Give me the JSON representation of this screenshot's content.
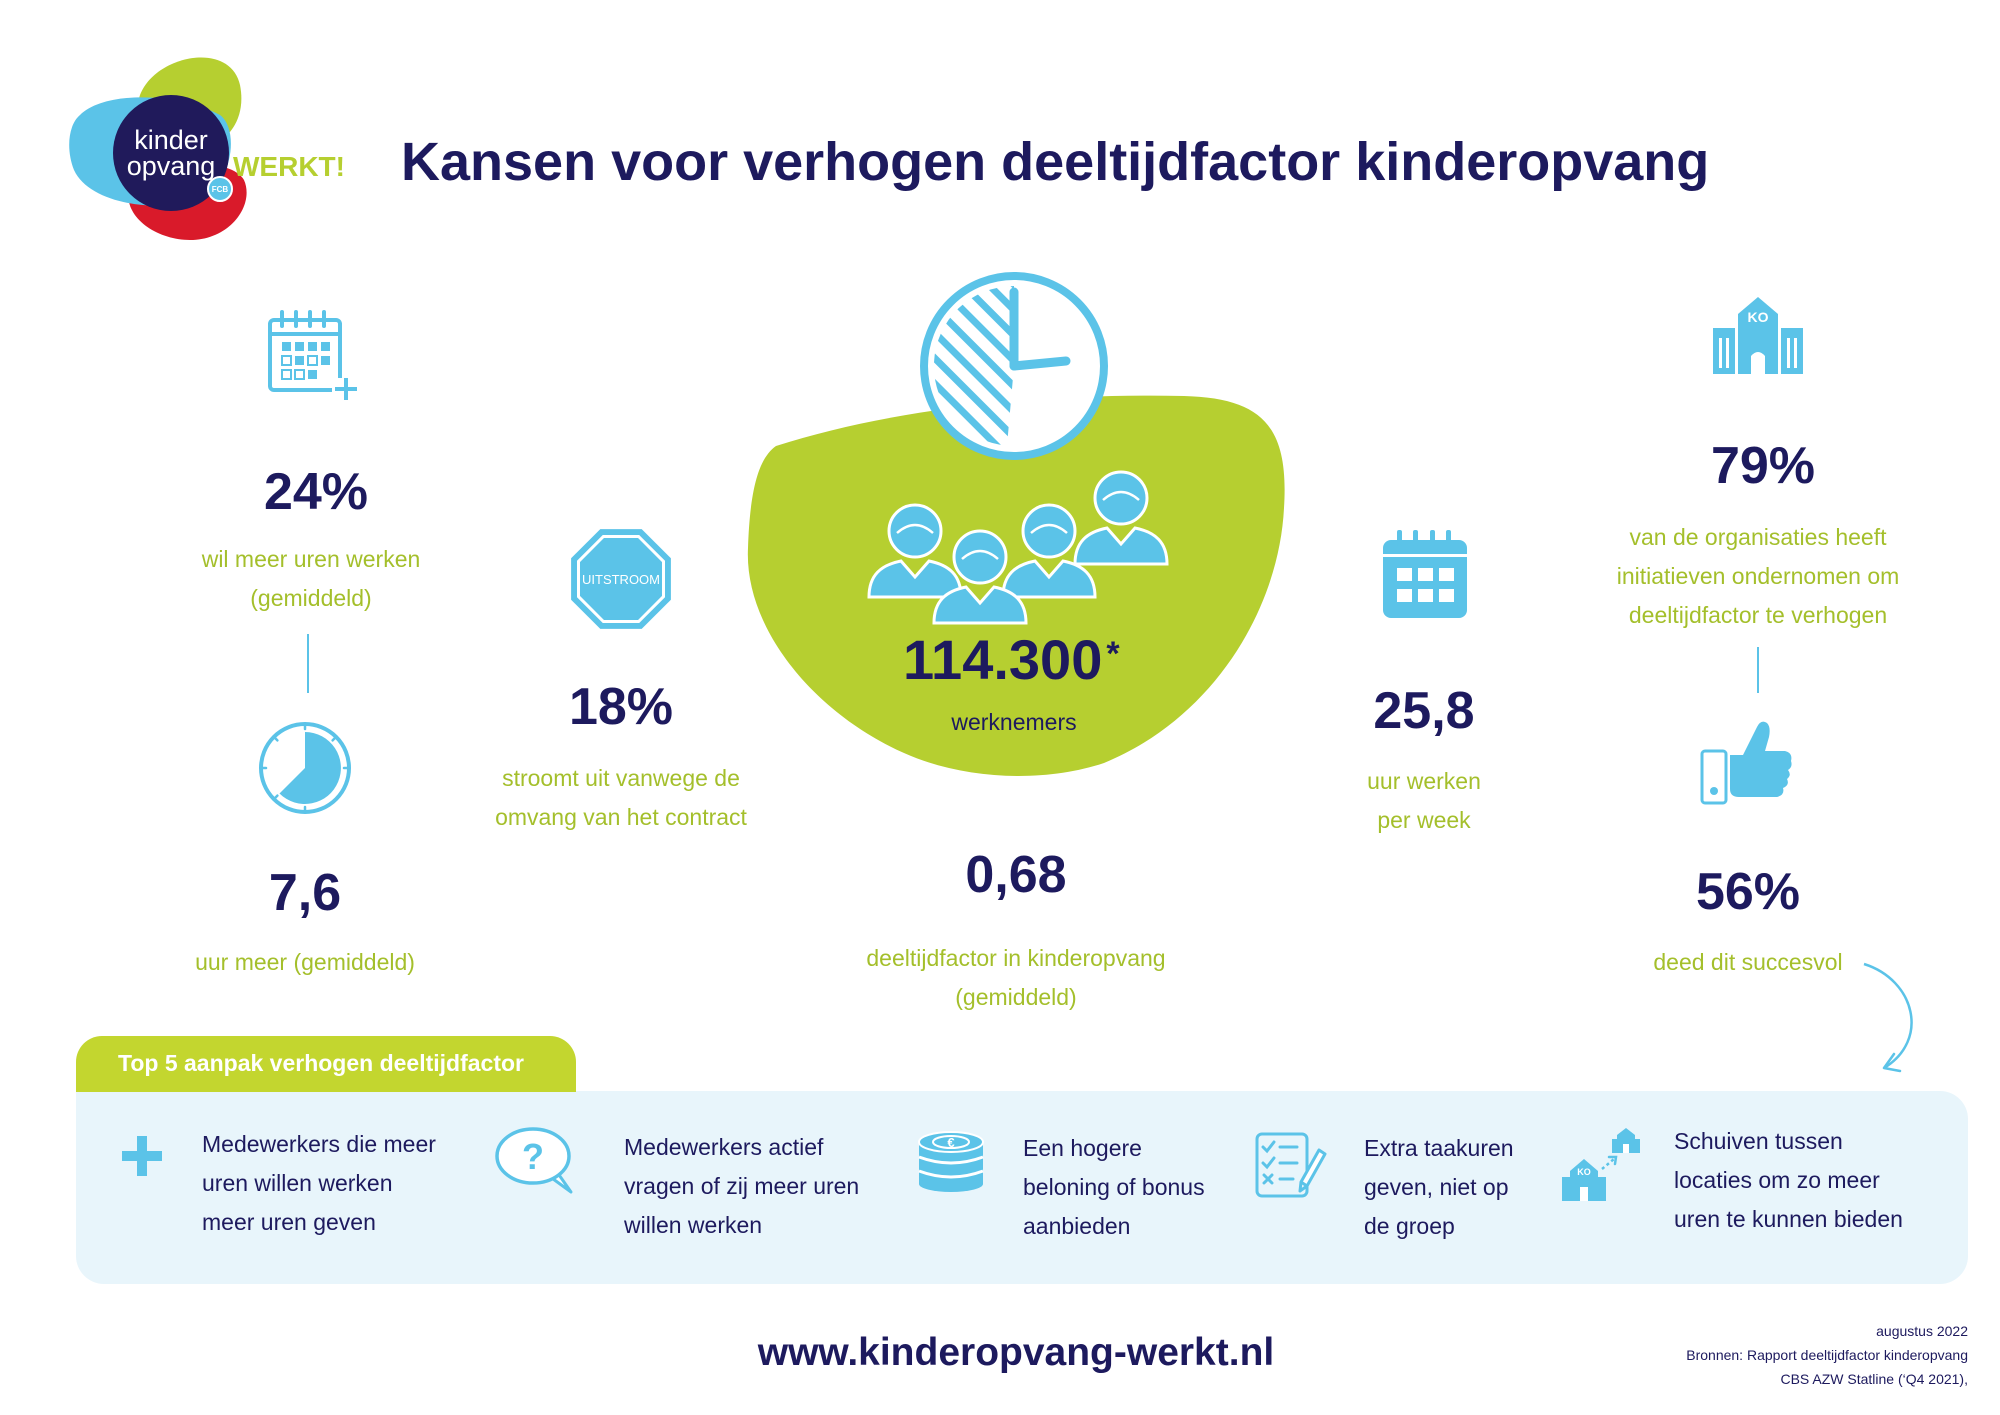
{
  "logo": {
    "line1": "kinder",
    "line2": "opvang",
    "brand": "WERKT!",
    "badge": "FCB"
  },
  "title": "Kansen voor verhogen deeltijdfactor kinderopvang",
  "stats": {
    "more_hours_wanted": {
      "icon": "calendar-plus-icon",
      "value": "24%",
      "lines": [
        "wil meer uren werken",
        "(gemiddeld)"
      ]
    },
    "extra_hours": {
      "icon": "clock-pie-icon",
      "value": "7,6",
      "lines": [
        "uur meer (gemiddeld)"
      ]
    },
    "outflow": {
      "icon": "stop-sign-icon",
      "badge": "UITSTROOM",
      "value": "18%",
      "lines": [
        "stroomt uit vanwege de",
        "omvang van het contract"
      ]
    },
    "employees": {
      "icon": "people-icon",
      "value": "114.300",
      "footnote_mark": "*",
      "label": "werknemers"
    },
    "part_time_factor": {
      "icon": "clock-icon",
      "value": "0,68",
      "lines": [
        "deeltijdfactor in kinderopvang",
        "(gemiddeld)"
      ]
    },
    "weekly_hours": {
      "icon": "calendar-icon",
      "value": "25,8",
      "lines": [
        "uur werken",
        "per week"
      ]
    },
    "organisations_initiative": {
      "icon": "building-icon",
      "icon_label": "KO",
      "value": "79%",
      "lines": [
        "van de organisaties heeft",
        "initiatieven ondernomen om",
        "deeltijdfactor te verhogen"
      ]
    },
    "successful": {
      "icon": "thumbs-up-icon",
      "value": "56%",
      "lines": [
        "deed dit succesvol"
      ]
    }
  },
  "top5": {
    "heading": "Top 5 aanpak verhogen deeltijdfactor",
    "items": [
      {
        "icon": "plus-icon",
        "lines": [
          "Medewerkers die meer",
          "uren willen werken",
          "meer uren geven"
        ]
      },
      {
        "icon": "question-bubble-icon",
        "lines": [
          "Medewerkers actief",
          "vragen of zij meer uren",
          "willen werken"
        ]
      },
      {
        "icon": "euro-coins-icon",
        "lines": [
          "Een hogere",
          "beloning of bonus",
          "aanbieden"
        ]
      },
      {
        "icon": "checklist-icon",
        "lines": [
          "Extra taakuren",
          "geven, niet op",
          "de groep"
        ]
      },
      {
        "icon": "buildings-transfer-icon",
        "lines": [
          "Schuiven tussen",
          "locaties om zo meer",
          "uren te kunnen bieden"
        ]
      }
    ]
  },
  "footer": {
    "url": "www.kinderopvang-werkt.nl",
    "date": "augustus 2022",
    "sources": [
      "Bronnen: Rapport deeltijdfactor kinderopvang",
      "CBS AZW Statline (‘Q4 2021),"
    ]
  },
  "colors": {
    "navy": "#1d1a5e",
    "green_text": "#a4bf2b",
    "green_blob": "#b6cf30",
    "light_blue": "#5bc3e8",
    "panel": "#e8f5fb",
    "logo_red": "#d91a2a"
  }
}
